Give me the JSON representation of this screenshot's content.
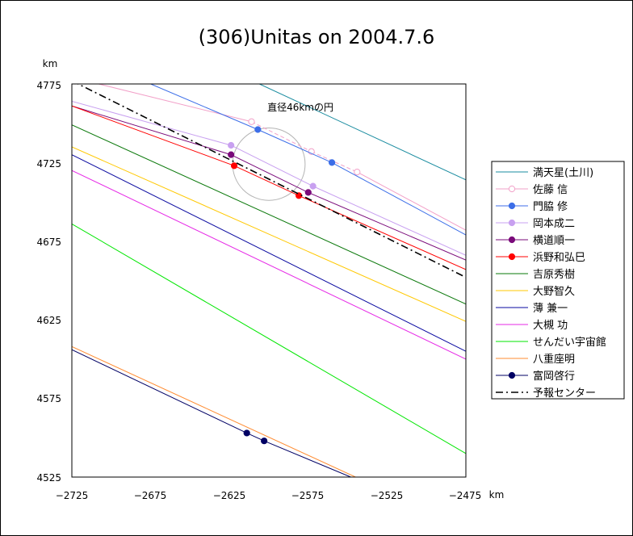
{
  "chart_data": {
    "type": "line",
    "title": "(306)Unitas on 2004.7.6",
    "xlabel": "km",
    "ylabel": "km",
    "xlim": [
      -2725,
      -2475
    ],
    "ylim": [
      4525,
      4775
    ],
    "xticks": [
      "−2725",
      "−2675",
      "−2625",
      "−2575",
      "−2525",
      "−2475"
    ],
    "yticks": [
      "4775",
      "4725",
      "4675",
      "4625",
      "4575",
      "4525"
    ],
    "grid": false,
    "legend_position": "right",
    "annotation": {
      "text": "直径46kmの円",
      "x": -2580,
      "y": 4758
    },
    "circle": {
      "center": [
        -2600,
        4724
      ],
      "radius_km": 23,
      "color": "#b4b4b4"
    },
    "series": [
      {
        "name": "満天星(土川)",
        "color": "#1a8ca0",
        "style": "solid",
        "x": [
          -2606,
          -2475
        ],
        "y": [
          4775,
          4714
        ]
      },
      {
        "name": "佐藤 信",
        "color": "#f2a0c8",
        "style": "solid-dash-solid",
        "marker": "open",
        "x": [
          -2708,
          -2611,
          -2573,
          -2544,
          -2475
        ],
        "y": [
          4775,
          4751,
          4732,
          4719,
          4682
        ],
        "chords": [
          [
            1,
            2
          ],
          [
            2,
            3
          ]
        ]
      },
      {
        "name": "門脇 修",
        "color": "#3c6ee8",
        "style": "solid",
        "marker": "filled",
        "x": [
          -2675,
          -2607,
          -2560,
          -2475
        ],
        "y": [
          4775,
          4746,
          4725,
          4679
        ],
        "chords": [
          [
            1,
            2
          ]
        ]
      },
      {
        "name": "岡本成二",
        "color": "#c8a0f0",
        "style": "solid",
        "marker": "filled",
        "x": [
          -2725,
          -2624,
          -2572,
          -2475
        ],
        "y": [
          4764,
          4736,
          4710,
          4666
        ],
        "chords": [
          [
            1,
            2
          ]
        ]
      },
      {
        "name": "横道順一",
        "color": "#7a0a7a",
        "style": "solid",
        "marker": "filled",
        "x": [
          -2725,
          -2624,
          -2575,
          -2475
        ],
        "y": [
          4761,
          4730,
          4706,
          4663
        ],
        "chords": [
          [
            1,
            2
          ]
        ]
      },
      {
        "name": "浜野和弘巳",
        "color": "#ff0000",
        "style": "solid",
        "marker": "filled",
        "x": [
          -2725,
          -2622,
          -2581,
          -2475
        ],
        "y": [
          4761,
          4723,
          4704,
          4657
        ],
        "chords": [
          [
            1,
            2
          ]
        ]
      },
      {
        "name": "吉原秀樹",
        "color": "#0a780a",
        "style": "solid",
        "x": [
          -2725,
          -2475
        ],
        "y": [
          4749,
          4635
        ]
      },
      {
        "name": "大野智久",
        "color": "#ffc800",
        "style": "solid",
        "x": [
          -2725,
          -2475
        ],
        "y": [
          4735,
          4624
        ]
      },
      {
        "name": "薄 兼一",
        "color": "#0a0aa0",
        "style": "solid",
        "x": [
          -2725,
          -2475
        ],
        "y": [
          4730,
          4605
        ]
      },
      {
        "name": "大槻 功",
        "color": "#e628e6",
        "style": "solid",
        "x": [
          -2725,
          -2475
        ],
        "y": [
          4720,
          4600
        ]
      },
      {
        "name": "せんだい宇宙館",
        "color": "#00e600",
        "style": "solid",
        "x": [
          -2725,
          -2475
        ],
        "y": [
          4686,
          4540
        ]
      },
      {
        "name": "八重座明",
        "color": "#ff8c32",
        "style": "solid",
        "x": [
          -2725,
          -2545
        ],
        "y": [
          4608,
          4525
        ]
      },
      {
        "name": "富岡啓行",
        "color": "#000064",
        "style": "solid",
        "marker": "filled",
        "x": [
          -2725,
          -2614,
          -2603,
          -2548
        ],
        "y": [
          4606,
          4553,
          4548,
          4525
        ],
        "chords": [
          [
            1,
            2
          ]
        ]
      },
      {
        "name": "予報センター",
        "color": "#000000",
        "style": "dashdot",
        "x": [
          -2725,
          -2475
        ],
        "y": [
          4777,
          4652
        ]
      }
    ]
  }
}
